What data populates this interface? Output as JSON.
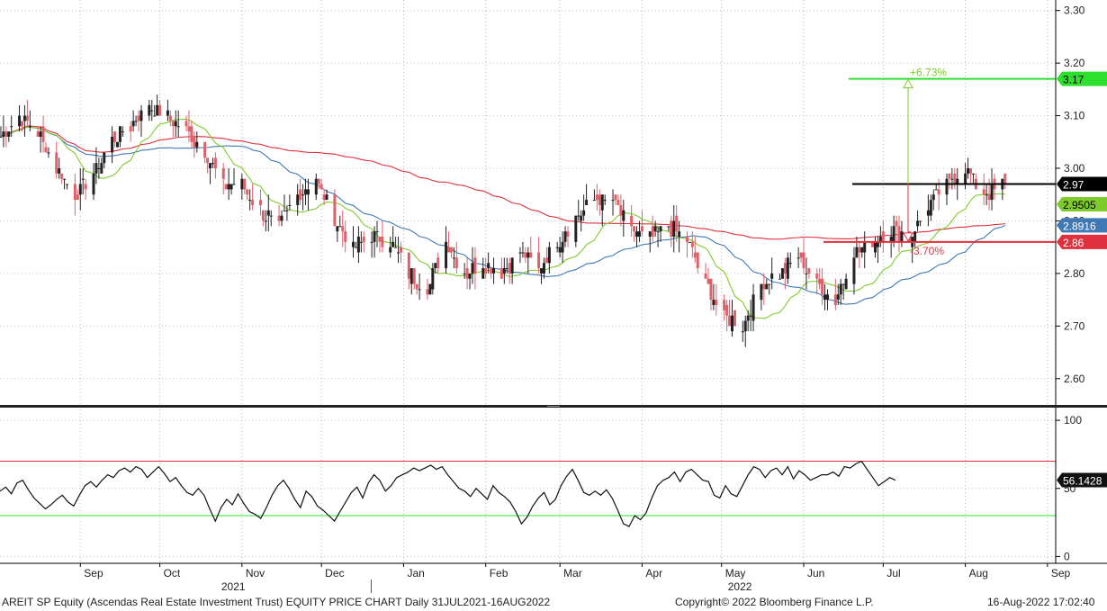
{
  "chart_data": [
    {
      "type": "candlestick",
      "title": "AREIT SP Equity (Ascendas Real Estate Investment Trust) EQUITY PRICE CHART",
      "ylim": [
        2.55,
        3.32
      ],
      "yticks": [
        "3.30",
        "3.20",
        "3.10",
        "3.00",
        "2.90",
        "2.80",
        "2.70",
        "2.60"
      ],
      "xticks": [
        "Sep",
        "Oct",
        "Nov",
        "Dec",
        "Jan",
        "Feb",
        "Mar",
        "Apr",
        "May",
        "Jun",
        "Jul",
        "Aug",
        "Sep"
      ],
      "years": [
        "2021",
        "2022"
      ],
      "grid": true,
      "close_anchors": [
        [
          "2021-08-02",
          3.06
        ],
        [
          "2021-08-09",
          3.1
        ],
        [
          "2021-08-16",
          3.07
        ],
        [
          "2021-08-23",
          3.0
        ],
        [
          "2021-08-30",
          2.95
        ],
        [
          "2021-09-06",
          2.99
        ],
        [
          "2021-09-13",
          3.05
        ],
        [
          "2021-09-20",
          3.08
        ],
        [
          "2021-09-27",
          3.12
        ],
        [
          "2021-10-04",
          3.1
        ],
        [
          "2021-10-11",
          3.07
        ],
        [
          "2021-10-18",
          3.03
        ],
        [
          "2021-10-25",
          2.97
        ],
        [
          "2021-11-01",
          2.97
        ],
        [
          "2021-11-08",
          2.92
        ],
        [
          "2021-11-15",
          2.89
        ],
        [
          "2021-11-22",
          2.95
        ],
        [
          "2021-11-29",
          2.98
        ],
        [
          "2021-12-06",
          2.9
        ],
        [
          "2021-12-13",
          2.85
        ],
        [
          "2021-12-20",
          2.87
        ],
        [
          "2021-12-27",
          2.86
        ],
        [
          "2022-01-03",
          2.8
        ],
        [
          "2022-01-10",
          2.77
        ],
        [
          "2022-01-17",
          2.86
        ],
        [
          "2022-01-24",
          2.8
        ],
        [
          "2022-01-31",
          2.82
        ],
        [
          "2022-02-07",
          2.8
        ],
        [
          "2022-02-14",
          2.84
        ],
        [
          "2022-02-21",
          2.81
        ],
        [
          "2022-02-28",
          2.86
        ],
        [
          "2022-03-07",
          2.91
        ],
        [
          "2022-03-14",
          2.94
        ],
        [
          "2022-03-21",
          2.94
        ],
        [
          "2022-03-28",
          2.88
        ],
        [
          "2022-04-04",
          2.87
        ],
        [
          "2022-04-11",
          2.89
        ],
        [
          "2022-04-18",
          2.86
        ],
        [
          "2022-04-25",
          2.78
        ],
        [
          "2022-05-02",
          2.72
        ],
        [
          "2022-05-09",
          2.7
        ],
        [
          "2022-05-16",
          2.78
        ],
        [
          "2022-05-23",
          2.8
        ],
        [
          "2022-05-30",
          2.83
        ],
        [
          "2022-06-06",
          2.78
        ],
        [
          "2022-06-13",
          2.75
        ],
        [
          "2022-06-20",
          2.84
        ],
        [
          "2022-06-27",
          2.86
        ],
        [
          "2022-07-04",
          2.88
        ],
        [
          "2022-07-11",
          2.87
        ],
        [
          "2022-07-18",
          2.93
        ],
        [
          "2022-07-25",
          2.97
        ],
        [
          "2022-08-01",
          3.0
        ],
        [
          "2022-08-08",
          2.95
        ],
        [
          "2022-08-16",
          2.97
        ]
      ],
      "moving_average_colors": {
        "ma_short": "#7dcc2b",
        "ma_mid": "#3f79b5",
        "ma_long": "#e0303d"
      },
      "moving_average_ends": {
        "ma_short": 2.9505,
        "ma_mid": 2.8916,
        "ma_long": 2.895
      },
      "price_labels": [
        {
          "text": "3.17",
          "value": 3.17,
          "bg": "#2ee02e",
          "fg": "#000000"
        },
        {
          "text": "2.97",
          "value": 2.97,
          "bg": "#000000",
          "fg": "#ffffff"
        },
        {
          "text": "2.9505",
          "value": 2.9505,
          "bg": "#7dcc2b",
          "fg": "#000000"
        },
        {
          "text": "2.8916",
          "value": 2.8916,
          "bg": "#3f79b5",
          "fg": "#ffffff"
        },
        {
          "text": "2.86",
          "value": 2.86,
          "bg": "#e0303d",
          "fg": "#ffffff"
        }
      ],
      "reference_lines": [
        {
          "value": 3.17,
          "color": "#2ee02e"
        },
        {
          "value": 2.97,
          "color": "#000000"
        },
        {
          "value": 2.86,
          "color": "#e0303d"
        }
      ],
      "range_annotation": {
        "up_label": "+6.73%",
        "down_label": "-3.70%",
        "up_color": "#7dcc2b",
        "down_color": "#e0303d"
      },
      "candle_colors": {
        "up": "#222222",
        "down": "#e0606a"
      }
    },
    {
      "type": "line",
      "ylim": [
        -5,
        108
      ],
      "yticks": [
        "100",
        "50",
        "0"
      ],
      "current_value_label": "56.1428",
      "current_value": 56.1428,
      "upper_band": 70,
      "lower_band": 30,
      "upper_band_color": "#e0303d",
      "lower_band_color": "#2ee02e",
      "values": [
        48,
        51,
        46,
        54,
        56,
        49,
        43,
        39,
        35,
        38,
        42,
        45,
        40,
        37,
        45,
        52,
        55,
        51,
        56,
        60,
        58,
        63,
        65,
        62,
        66,
        64,
        58,
        62,
        66,
        61,
        55,
        58,
        52,
        47,
        45,
        50,
        45,
        35,
        26,
        36,
        42,
        38,
        46,
        39,
        33,
        31,
        28,
        36,
        45,
        52,
        56,
        50,
        42,
        36,
        48,
        44,
        37,
        34,
        30,
        26,
        33,
        40,
        47,
        51,
        43,
        54,
        60,
        56,
        48,
        52,
        58,
        60,
        62,
        65,
        63,
        65,
        67,
        64,
        66,
        60,
        55,
        50,
        48,
        44,
        50,
        46,
        42,
        52,
        47,
        44,
        40,
        33,
        24,
        29,
        37,
        43,
        47,
        38,
        42,
        52,
        59,
        64,
        56,
        47,
        45,
        48,
        45,
        49,
        43,
        34,
        24,
        22,
        30,
        27,
        32,
        43,
        52,
        56,
        58,
        62,
        55,
        62,
        64,
        60,
        56,
        55,
        45,
        43,
        52,
        46,
        44,
        52,
        60,
        66,
        64,
        58,
        63,
        65,
        60,
        66,
        57,
        63,
        60,
        56,
        58,
        60,
        60,
        62,
        59,
        66,
        65,
        68,
        70,
        64,
        58,
        52,
        55,
        58,
        56
      ]
    }
  ],
  "footer": {
    "left": "AREIT SP Equity (Ascendas Real Estate Investment Trust) EQUITY PRICE CHART   Daily 31JUL2021-16AUG2022",
    "center": "Copyright© 2022 Bloomberg Finance L.P.",
    "right": "16-Aug-2022 17:02:40"
  }
}
